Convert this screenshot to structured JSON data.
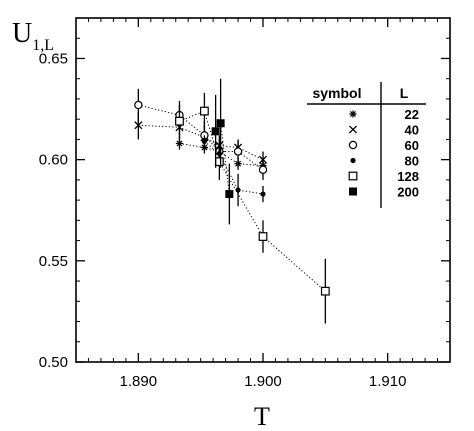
{
  "chart_data": {
    "type": "scatter",
    "ylabel_main": "U",
    "ylabel_sub": "1,L",
    "xlabel": "T",
    "xlim": [
      1.885,
      1.915
    ],
    "ylim": [
      0.5,
      0.67
    ],
    "xticks": [
      1.89,
      1.9,
      1.91
    ],
    "xtick_labels": [
      "1.890",
      "1.900",
      "1.910"
    ],
    "yticks": [
      0.5,
      0.55,
      0.6,
      0.65
    ],
    "ytick_labels": [
      "0.50",
      "0.55",
      "0.60",
      "0.65"
    ],
    "grid": false,
    "legend": {
      "placement": "top-right",
      "header_symbol": "symbol",
      "header_L": "L",
      "rows": [
        {
          "marker": "asterisk",
          "L": "22"
        },
        {
          "marker": "cross",
          "L": "40"
        },
        {
          "marker": "open-circle",
          "L": "60"
        },
        {
          "marker": "filled-circle",
          "L": "80"
        },
        {
          "marker": "open-square",
          "L": "128"
        },
        {
          "marker": "filled-square",
          "L": "200"
        }
      ]
    },
    "series": [
      {
        "L": 22,
        "marker": "asterisk",
        "x": [
          1.8933,
          1.8953,
          1.8965,
          1.898,
          1.9
        ],
        "y": [
          0.608,
          0.606,
          0.604,
          0.598,
          0.597
        ],
        "err": [
          0.003,
          0.003,
          0.003,
          0.003,
          0.003
        ]
      },
      {
        "L": 40,
        "marker": "cross",
        "x": [
          1.89,
          1.8933,
          1.8953,
          1.8965,
          1.898,
          1.9
        ],
        "y": [
          0.617,
          0.616,
          0.611,
          0.607,
          0.606,
          0.6
        ],
        "err": [
          0.007,
          0.006,
          0.006,
          0.005,
          0.004,
          0.004
        ]
      },
      {
        "L": 60,
        "marker": "open-circle",
        "x": [
          1.89,
          1.8933,
          1.8953,
          1.8965,
          1.898,
          1.9
        ],
        "y": [
          0.627,
          0.622,
          0.612,
          0.604,
          0.604,
          0.595
        ],
        "err": [
          0.008,
          0.007,
          0.007,
          0.006,
          0.005,
          0.005
        ]
      },
      {
        "L": 80,
        "marker": "filled-circle",
        "x": [
          1.8953,
          1.8965,
          1.898,
          1.9
        ],
        "y": [
          0.609,
          0.603,
          0.585,
          0.583
        ],
        "err": [
          0.003,
          0.004,
          0.008,
          0.004
        ]
      },
      {
        "L": 128,
        "marker": "open-square",
        "x": [
          1.8933,
          1.8953,
          1.8965,
          1.9,
          1.905
        ],
        "y": [
          0.619,
          0.624,
          0.599,
          0.562,
          0.535
        ],
        "err": [
          0.008,
          0.009,
          0.009,
          0.008,
          0.016
        ]
      },
      {
        "L": 200,
        "marker": "filled-square",
        "x": [
          1.8962,
          1.8966,
          1.8973
        ],
        "y": [
          0.614,
          0.618,
          0.583
        ],
        "err": [
          0.018,
          0.022,
          0.015
        ]
      }
    ]
  }
}
